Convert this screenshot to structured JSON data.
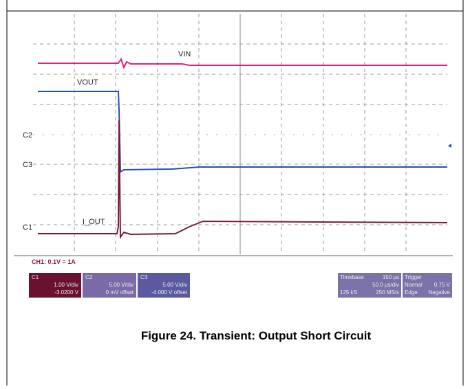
{
  "scope": {
    "labels": {
      "vin": "VIN",
      "vout": "VOUT",
      "iout": "I_OUT",
      "c2": "C2",
      "c3": "C3",
      "c1": "C1"
    },
    "note": "CH1: 0.1V = 1A",
    "channels": [
      {
        "name": "C1",
        "scale": "1.00 V/div",
        "offset": "-3.0200 V"
      },
      {
        "name": "C2",
        "scale": "5.00 V/div",
        "offset": "0 mV offset"
      },
      {
        "name": "C3",
        "scale": "5.00 V/div",
        "offset": "-4.000 V offset"
      }
    ],
    "timebase": {
      "title": "Timebase",
      "delay": "150 µs",
      "scale": "50.0 µs/div",
      "samples": "125 kS",
      "rate": "250 MS/s"
    },
    "trigger": {
      "title": "Trigger",
      "mode": "Normal",
      "level": "0.75 V",
      "type": "Edge",
      "slope": "Negative"
    }
  },
  "caption": "Figure 24. Transient: Output Short Circuit"
}
